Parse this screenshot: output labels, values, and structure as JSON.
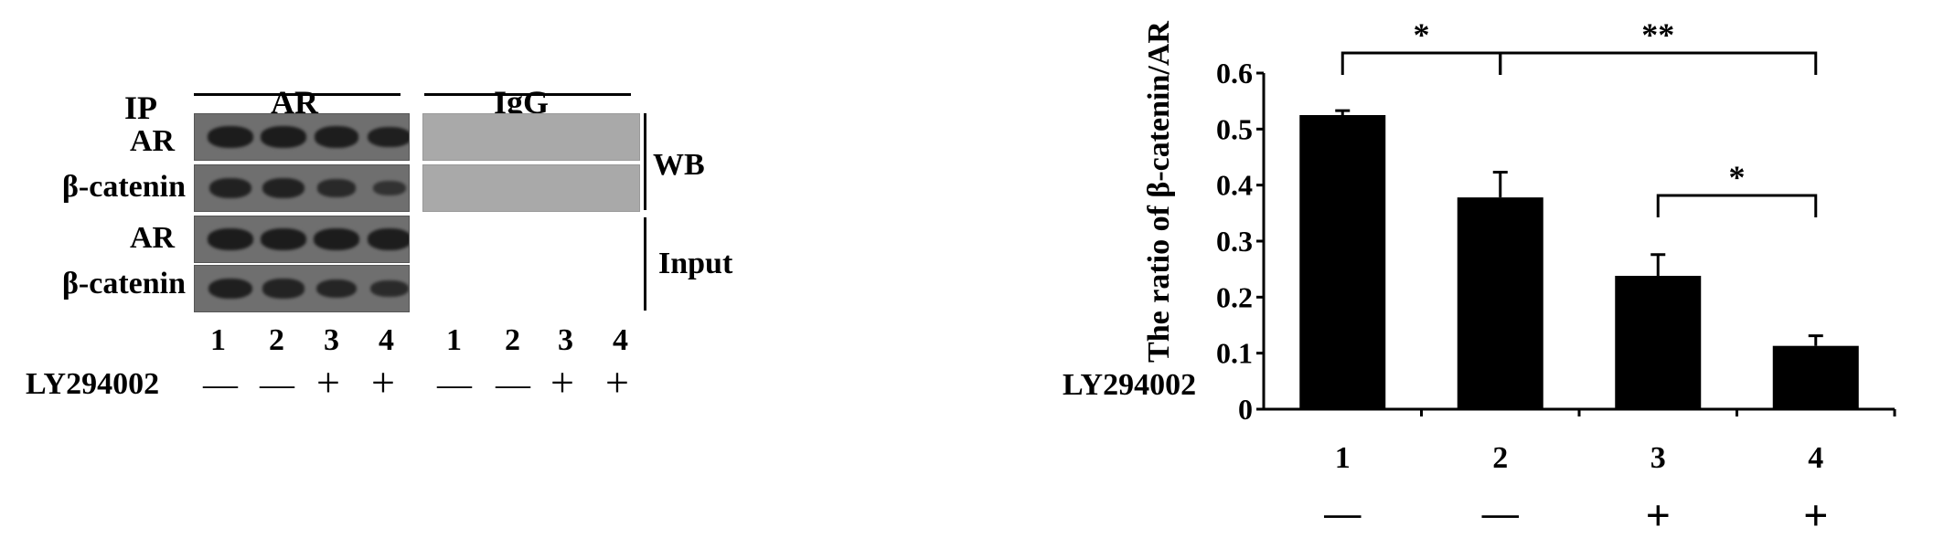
{
  "blot_panel": {
    "ip_label": "IP",
    "group_ar": "AR",
    "group_igg": "IgG",
    "rows": [
      {
        "label": "AR",
        "bands": [
          1.0,
          1.0,
          0.95,
          0.9
        ]
      },
      {
        "label": "β-catenin",
        "bands": [
          0.85,
          0.85,
          0.65,
          0.4
        ]
      },
      {
        "label": "AR",
        "bands": [
          1.0,
          1.0,
          1.0,
          0.95
        ]
      },
      {
        "label": "β-catenin",
        "bands": [
          0.9,
          0.8,
          0.75,
          0.6
        ]
      }
    ],
    "wb_label": "WB",
    "input_label": "Input",
    "lane_numbers": [
      "1",
      "2",
      "3",
      "4",
      "1",
      "2",
      "3",
      "4"
    ],
    "treatment_label": "LY294002",
    "treatment_signs": [
      "—",
      "—",
      "+",
      "+",
      "—",
      "—",
      "+",
      "+"
    ]
  },
  "chart_data": {
    "type": "bar",
    "categories": [
      "1",
      "2",
      "3",
      "4"
    ],
    "values": [
      0.525,
      0.378,
      0.238,
      0.113
    ],
    "errors": [
      0.008,
      0.045,
      0.038,
      0.018
    ],
    "ylabel": "The ratio of β-catenin/AR",
    "ylim": [
      0,
      0.6
    ],
    "yticks": [
      "0",
      "0.1",
      "0.2",
      "0.3",
      "0.4",
      "0.5",
      "0.6"
    ],
    "bar_color": "#000000",
    "significance": [
      {
        "from": 1,
        "to": 2,
        "label": "*"
      },
      {
        "from": 2,
        "to": 4,
        "label": "**"
      },
      {
        "from": 3,
        "to": 4,
        "label": "*"
      }
    ],
    "treatment_label": "LY294002",
    "treatment_signs": [
      "—",
      "—",
      "+",
      "+"
    ]
  }
}
